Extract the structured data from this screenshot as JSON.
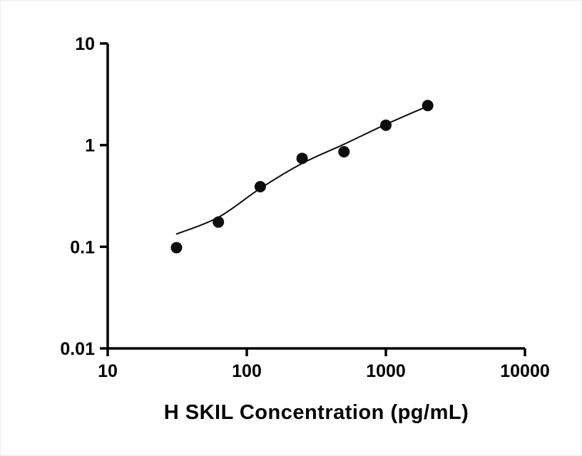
{
  "figure": {
    "background": "#ffffff",
    "foreground": "#000000"
  },
  "chart_data": {
    "type": "scatter",
    "title": "",
    "xlabel": "H SKIL Concentration (pg/mL)",
    "ylabel": "",
    "x_scale": "log",
    "y_scale": "log",
    "xlim": [
      10,
      10000
    ],
    "ylim": [
      0.01,
      10
    ],
    "x_ticks": [
      10,
      100,
      1000,
      10000
    ],
    "y_ticks": [
      0.01,
      0.1,
      1,
      10
    ],
    "x_tick_labels": [
      "10",
      "100",
      "1000",
      "10000"
    ],
    "y_tick_labels": [
      "0.01",
      "0.1",
      "1",
      "10"
    ],
    "grid": false,
    "legend": "none",
    "marker_color": "#0d0d0d",
    "line_color": "#0d0d0d",
    "series": [
      {
        "name": "standard-points",
        "type": "scatter",
        "marker": "circle-filled",
        "points": [
          [
            31.25,
            0.098
          ],
          [
            62.5,
            0.175
          ],
          [
            125,
            0.39
          ],
          [
            250,
            0.74
          ],
          [
            500,
            0.86
          ],
          [
            1000,
            1.57
          ],
          [
            2000,
            2.45
          ]
        ]
      },
      {
        "name": "fit-curve",
        "type": "line",
        "points": [
          [
            31,
            0.133
          ],
          [
            62.5,
            0.195
          ],
          [
            125,
            0.375
          ],
          [
            250,
            0.66
          ],
          [
            500,
            1.02
          ],
          [
            1000,
            1.6
          ],
          [
            2000,
            2.42
          ]
        ]
      }
    ]
  }
}
